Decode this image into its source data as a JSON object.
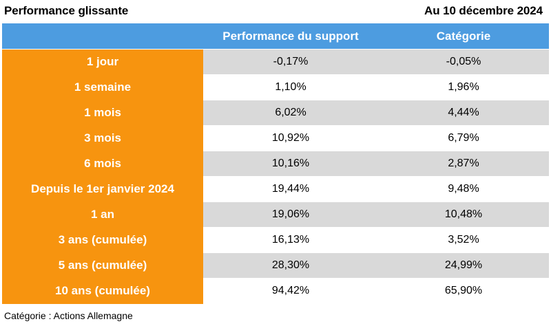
{
  "header": {
    "title": "Performance glissante",
    "date": "Au 10 décembre 2024"
  },
  "table": {
    "columns": [
      "",
      "Performance du support",
      "Catégorie"
    ],
    "rows": [
      {
        "period": "1 jour",
        "support": "-0,17%",
        "categorie": "-0,05%"
      },
      {
        "period": "1 semaine",
        "support": "1,10%",
        "categorie": "1,96%"
      },
      {
        "period": "1 mois",
        "support": "6,02%",
        "categorie": "4,44%"
      },
      {
        "period": "3 mois",
        "support": "10,92%",
        "categorie": "6,79%"
      },
      {
        "period": "6 mois",
        "support": "10,16%",
        "categorie": "2,87%"
      },
      {
        "period": "Depuis le 1er janvier 2024",
        "support": "19,44%",
        "categorie": "9,48%"
      },
      {
        "period": "1 an",
        "support": "19,06%",
        "categorie": "10,48%"
      },
      {
        "period": "3 ans (cumulée)",
        "support": "16,13%",
        "categorie": "3,52%"
      },
      {
        "period": "5 ans (cumulée)",
        "support": "28,30%",
        "categorie": "24,99%"
      },
      {
        "period": "10 ans (cumulée)",
        "support": "94,42%",
        "categorie": "65,90%"
      }
    ]
  },
  "footer": {
    "note": "Catégorie : Actions Allemagne"
  },
  "colors": {
    "header_blue": "#4d9ce0",
    "label_orange": "#f7940f",
    "row_shade": "#d9d9d9"
  }
}
